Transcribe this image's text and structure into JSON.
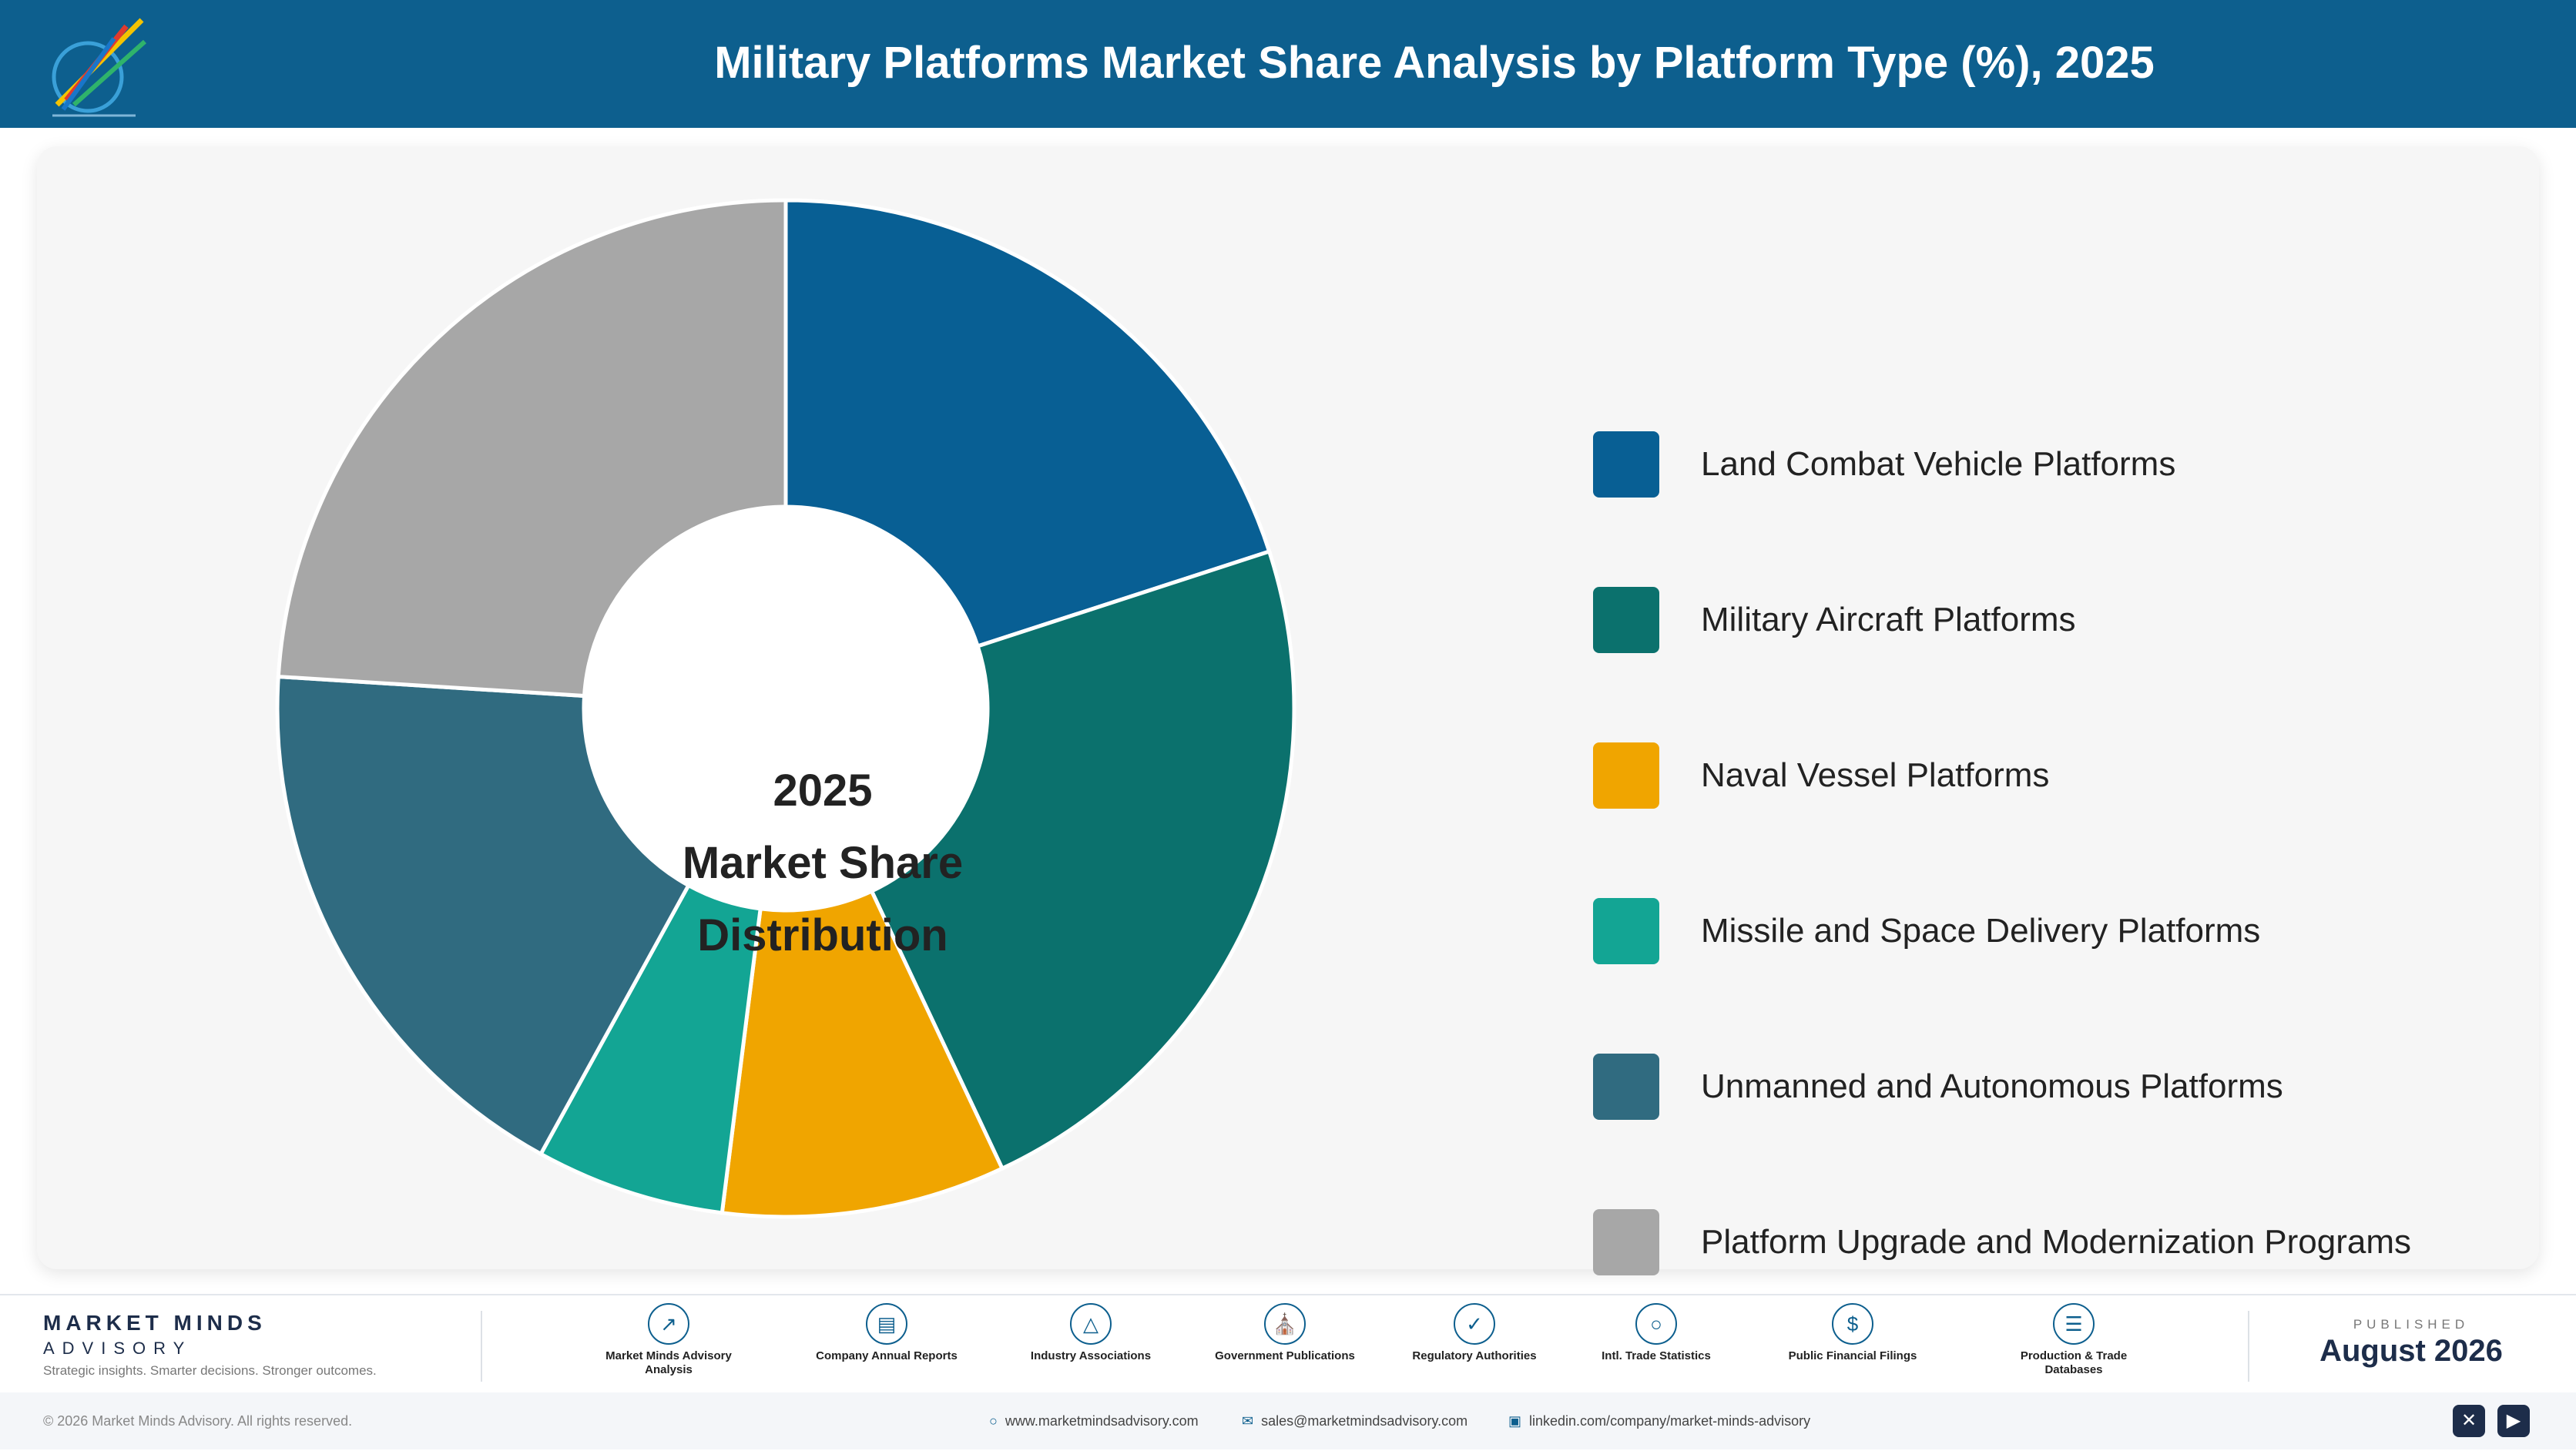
{
  "header": {
    "title": "Military Platforms Market Share Analysis by Platform Type (%), 2025"
  },
  "chart_data": {
    "type": "pie",
    "variant": "donut",
    "year": "2025",
    "center_label": [
      "2025",
      "Market Share",
      "Distribution"
    ],
    "categories": [
      "Land Combat Vehicle Platforms",
      "Military Aircraft Platforms",
      "Naval Vessel Platforms",
      "Missile and Space Delivery Platforms",
      "Unmanned and Autonomous Platforms",
      "Platform Upgrade and Modernization Programs"
    ],
    "values": [
      20,
      23,
      9,
      6,
      18,
      24
    ],
    "colors": [
      "#085f94",
      "#0b716d",
      "#f0a500",
      "#13a594",
      "#306b80",
      "#a7a7a7"
    ],
    "legend_position": "right",
    "data_labels_shown": false
  },
  "footer": {
    "brand_name": "MARKET MINDS",
    "brand_sub": "ADVISORY",
    "brand_tagline": "Strategic insights. Smarter decisions. Stronger outcomes.",
    "sources": [
      {
        "label": "Market Minds Advisory Analysis",
        "icon": "trend-icon"
      },
      {
        "label": "Company Annual Reports",
        "icon": "document-icon"
      },
      {
        "label": "Industry Associations",
        "icon": "network-icon"
      },
      {
        "label": "Government Publications",
        "icon": "government-building-icon"
      },
      {
        "label": "Regulatory Authorities",
        "icon": "shield-check-icon"
      },
      {
        "label": "Intl. Trade Statistics",
        "icon": "globe-icon"
      },
      {
        "label": "Public Financial Filings",
        "icon": "coin-icon"
      },
      {
        "label": "Production & Trade Databases",
        "icon": "database-icon"
      }
    ],
    "published_label": "PUBLISHED",
    "published_date": "August 2026",
    "copyright": "© 2026 Market Minds Advisory. All rights reserved.",
    "website": "www.marketmindsadvisory.com",
    "email": "sales@marketmindsadvisory.com",
    "linkedin": "linkedin.com/company/market-minds-advisory",
    "social": [
      {
        "icon": "x-icon"
      },
      {
        "icon": "youtube-icon"
      }
    ]
  }
}
